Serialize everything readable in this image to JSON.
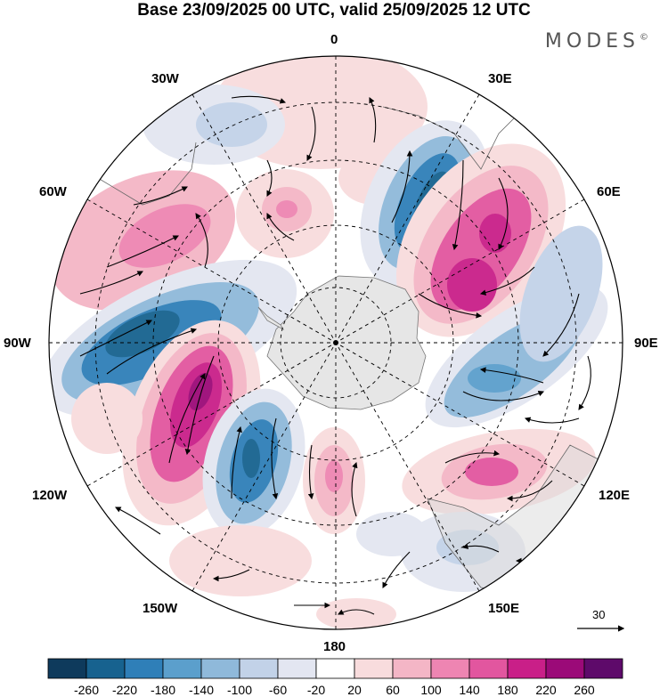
{
  "title": "Base 23/09/2025 00 UTC, valid 25/09/2025 12 UTC",
  "brand": "MODES",
  "brand_mark": "©",
  "longitude_labels": {
    "top": "0",
    "bottom": "180",
    "left": "90W",
    "right": "90E",
    "w30": "30W",
    "e30": "30E",
    "w60": "60W",
    "e60": "60E",
    "w120": "120W",
    "e120": "120E",
    "w150": "150W",
    "e150": "150E"
  },
  "reference_vector": "30",
  "colorbar": {
    "ticks": [
      "-260",
      "-220",
      "-180",
      "-140",
      "-100",
      "-60",
      "-20",
      "20",
      "60",
      "100",
      "140",
      "180",
      "220",
      "260"
    ],
    "colors": [
      "#0e3a5c",
      "#17628f",
      "#2f7fb8",
      "#5b9fcc",
      "#8fb9da",
      "#c2d2e8",
      "#e3e6f1",
      "#ffffff",
      "#f8dcdd",
      "#f4b6c6",
      "#ee85b2",
      "#e2569f",
      "#c91f88",
      "#9b0a78",
      "#5e0a6a"
    ]
  }
}
